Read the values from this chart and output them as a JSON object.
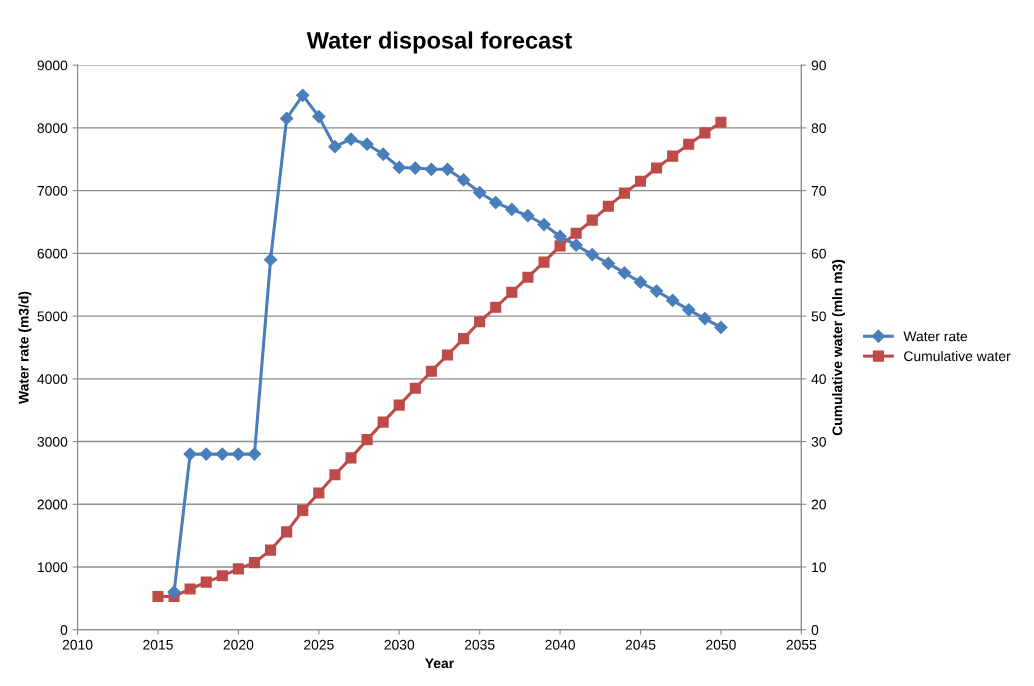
{
  "chart_data": {
    "type": "line",
    "title": "Water disposal forecast",
    "xlabel": "Year",
    "ylabel": "Water rate (m3/d)",
    "y2label": "Cumulative water (mln m3)",
    "xlim": [
      2010,
      2055
    ],
    "xticks": [
      2010,
      2015,
      2020,
      2025,
      2030,
      2035,
      2040,
      2045,
      2050,
      2055
    ],
    "ylim": [
      0,
      9000
    ],
    "yticks": [
      0,
      1000,
      2000,
      3000,
      4000,
      5000,
      6000,
      7000,
      8000,
      9000
    ],
    "y2lim": [
      0,
      90
    ],
    "y2ticks": [
      0,
      10,
      20,
      30,
      40,
      50,
      60,
      70,
      80,
      90
    ],
    "grid": "y",
    "legend": "right",
    "series": [
      {
        "name": "Water rate",
        "color": "#4a7ebb",
        "marker": "diamond",
        "x": [
          2016,
          2017,
          2018,
          2019,
          2020,
          2021,
          2022,
          2023,
          2024,
          2025,
          2026,
          2027,
          2028,
          2029,
          2030,
          2031,
          2032,
          2033,
          2034,
          2035,
          2036,
          2037,
          2038,
          2039,
          2040,
          2041,
          2042,
          2043,
          2044,
          2045,
          2046,
          2047,
          2048,
          2049,
          2050
        ],
        "values": [
          600,
          2800,
          2800,
          2800,
          2800,
          2800,
          5900,
          8150,
          8520,
          8180,
          7700,
          7820,
          7740,
          7580,
          7370,
          7360,
          7340,
          7340,
          7170,
          6970,
          6810,
          6700,
          6600,
          6460,
          6270,
          6130,
          5980,
          5840,
          5690,
          5540,
          5400,
          5250,
          5100,
          4960,
          4820
        ]
      },
      {
        "name": "Cumulative water",
        "color": "#be4b48",
        "marker": "square",
        "axis": "y2",
        "x": [
          2015,
          2016,
          2017,
          2018,
          2019,
          2020,
          2021,
          2022,
          2023,
          2024,
          2025,
          2026,
          2027,
          2028,
          2029,
          2030,
          2031,
          2032,
          2033,
          2034,
          2035,
          2036,
          2037,
          2038,
          2039,
          2040,
          2041,
          2042,
          2043,
          2044,
          2045,
          2046,
          2047,
          2048,
          2049,
          2050
        ],
        "values": [
          5.3,
          5.3,
          6.5,
          7.6,
          8.6,
          9.7,
          10.7,
          12.7,
          15.6,
          19.0,
          21.8,
          24.7,
          27.4,
          30.3,
          33.1,
          35.8,
          38.5,
          41.2,
          43.8,
          46.4,
          49.1,
          51.4,
          53.8,
          56.2,
          58.6,
          61.2,
          63.2,
          65.3,
          67.5,
          69.6,
          71.5,
          73.6,
          75.5,
          77.4,
          79.2,
          80.9
        ]
      }
    ]
  }
}
